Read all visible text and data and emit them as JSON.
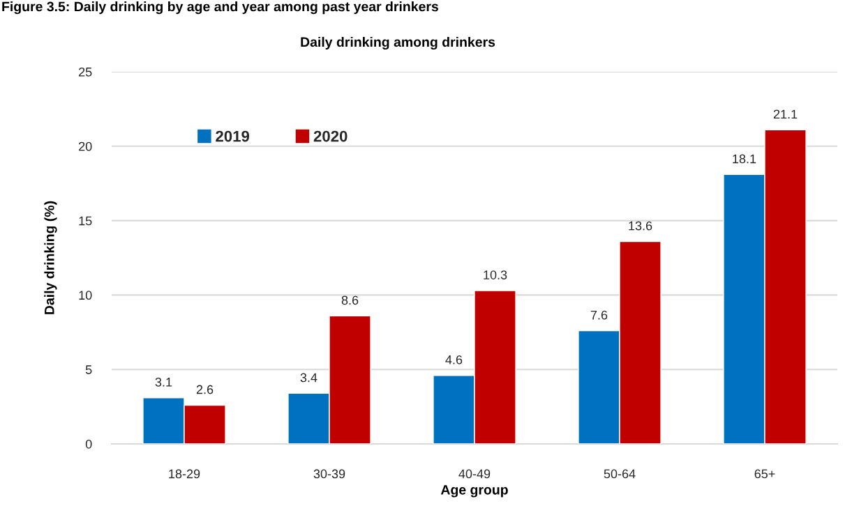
{
  "chart_data": {
    "type": "bar",
    "title": "Daily drinking among drinkers",
    "xlabel": "Age group",
    "ylabel": "Daily drinking (%)",
    "annotations": [
      "Figure 3.5: Daily drinking by age and year among past year drinkers"
    ],
    "categories": [
      "18-29",
      "30-39",
      "40-49",
      "50-64",
      "65+"
    ],
    "series": [
      {
        "name": "2019",
        "color": "#0070c0",
        "values": [
          3.1,
          3.4,
          4.6,
          7.6,
          18.1
        ]
      },
      {
        "name": "2020",
        "color": "#c00000",
        "values": [
          2.6,
          8.6,
          10.3,
          13.6,
          21.1
        ]
      }
    ],
    "ylim": [
      0,
      25
    ],
    "yticks": [
      0,
      5,
      10,
      15,
      20,
      25
    ],
    "grid": "y",
    "legend": "top left",
    "data_labels": true
  }
}
